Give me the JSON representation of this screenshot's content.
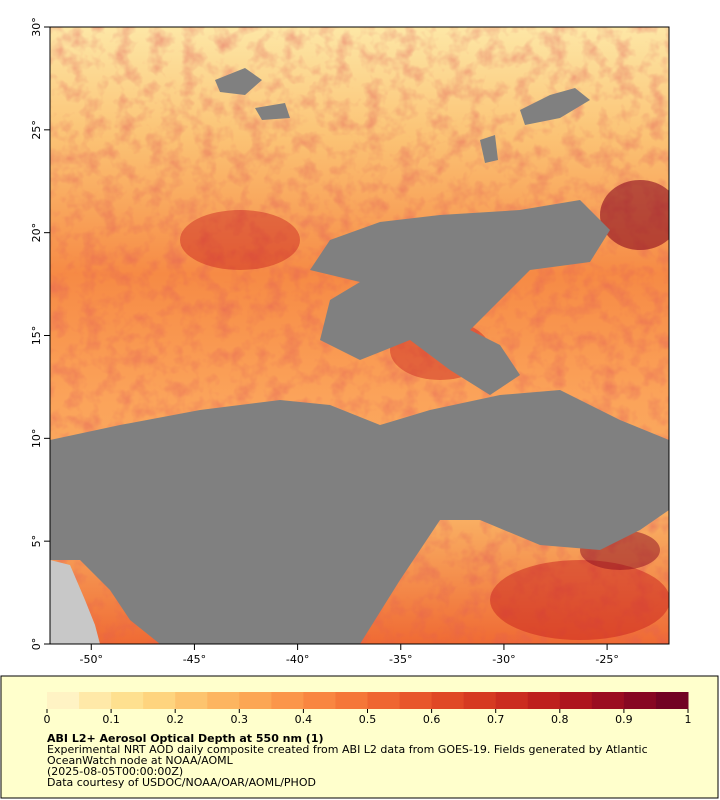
{
  "map": {
    "xlim": [
      -52,
      -22
    ],
    "ylim": [
      0,
      30
    ],
    "xticks": [
      {
        "value": -50,
        "label": "-50°"
      },
      {
        "value": -45,
        "label": "-45°"
      },
      {
        "value": -40,
        "label": "-40°"
      },
      {
        "value": -35,
        "label": "-35°"
      },
      {
        "value": -30,
        "label": "-30°"
      },
      {
        "value": -25,
        "label": "-25°"
      }
    ],
    "yticks": [
      {
        "value": 0,
        "label": "0°"
      },
      {
        "value": 5,
        "label": "5°"
      },
      {
        "value": 10,
        "label": "10°"
      },
      {
        "value": 15,
        "label": "15°"
      },
      {
        "value": 20,
        "label": "20°"
      },
      {
        "value": 25,
        "label": "25°"
      },
      {
        "value": 30,
        "label": "30°"
      }
    ]
  },
  "colorbar": {
    "range": [
      0,
      1
    ],
    "ticks": [
      0,
      0.1,
      0.2,
      0.3,
      0.4,
      0.5,
      0.6,
      0.7,
      0.8,
      0.9,
      1
    ],
    "colors": [
      "#fff3c4",
      "#ffe9a8",
      "#fee08f",
      "#fed47e",
      "#fdc46e",
      "#fdb560",
      "#fca654",
      "#fb964a",
      "#f98641",
      "#f57738",
      "#ef6631",
      "#e8572b",
      "#e04825",
      "#d63a21",
      "#cb2c1f",
      "#be201d",
      "#ae151e",
      "#9b0d20",
      "#870722",
      "#720323"
    ]
  },
  "legend": {
    "title": "ABI L2+ Aerosol Optical Depth at 550 nm (1)",
    "lines": [
      "Experimental NRT AOD daily composite created from ABI L2 data from GOES-19. Fields generated by Atlantic",
      "OceanWatch node at NOAA/AOML",
      "(2025-08-05T00:00:00Z)",
      "Data courtesy of USDOC/NOAA/OAR/AOML/PHOD"
    ]
  }
}
